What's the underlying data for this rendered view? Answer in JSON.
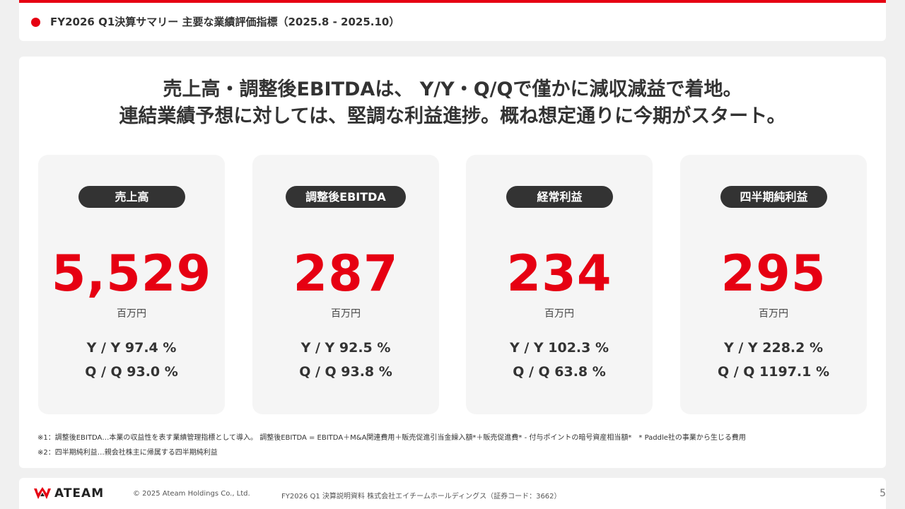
{
  "header": {
    "title": "FY2026 Q1決算サマリー 主要な業績評価指標（2025.8 - 2025.10）"
  },
  "headline": {
    "line1": "売上高・調整後EBITDAは、 Y/Y・Q/Qで僅かに減収減益で着地。",
    "line2": "連結業績予想に対しては、堅調な利益進捗。概ね想定通りに今期がスタート。"
  },
  "cards": [
    {
      "label": "売上高",
      "value": "5,529",
      "unit": "百万円",
      "yy": "Y / Y 97.4 %",
      "qq": "Q / Q 93.0 %"
    },
    {
      "label": "調整後EBITDA",
      "value": "287",
      "unit": "百万円",
      "yy": "Y / Y 92.5 %",
      "qq": "Q / Q 93.8 %"
    },
    {
      "label": "経常利益",
      "value": "234",
      "unit": "百万円",
      "yy": "Y / Y 102.3 %",
      "qq": "Q / Q 63.8 %"
    },
    {
      "label": "四半期純利益",
      "value": "295",
      "unit": "百万円",
      "yy": "Y / Y 228.2 %",
      "qq": "Q / Q 1197.1 %"
    }
  ],
  "notes": {
    "note1": "※1：調整後EBITDA…本業の収益性を表す業績管理指標として導入。 調整後EBITDA = EBITDA＋M&A関連費用＋販売促進引当金繰入額*＋販売促進費* - 付与ポイントの暗号資産相当額*　* Paddle社の事業から生じる費用",
    "note2": "※2：四半期純利益…親会社株主に帰属する四半期純利益"
  },
  "footer": {
    "logo_text": "ATEAM",
    "copyright": "© 2025 Ateam Holdings Co., Ltd.",
    "doc_title": "FY2026 Q1 決算説明資料 株式会社エイチームホールディングス（証券コード：3662）",
    "page_number": "5"
  },
  "colors": {
    "accent": "#e60012",
    "pill": "#333333",
    "card_bg": "#f5f5f5"
  }
}
